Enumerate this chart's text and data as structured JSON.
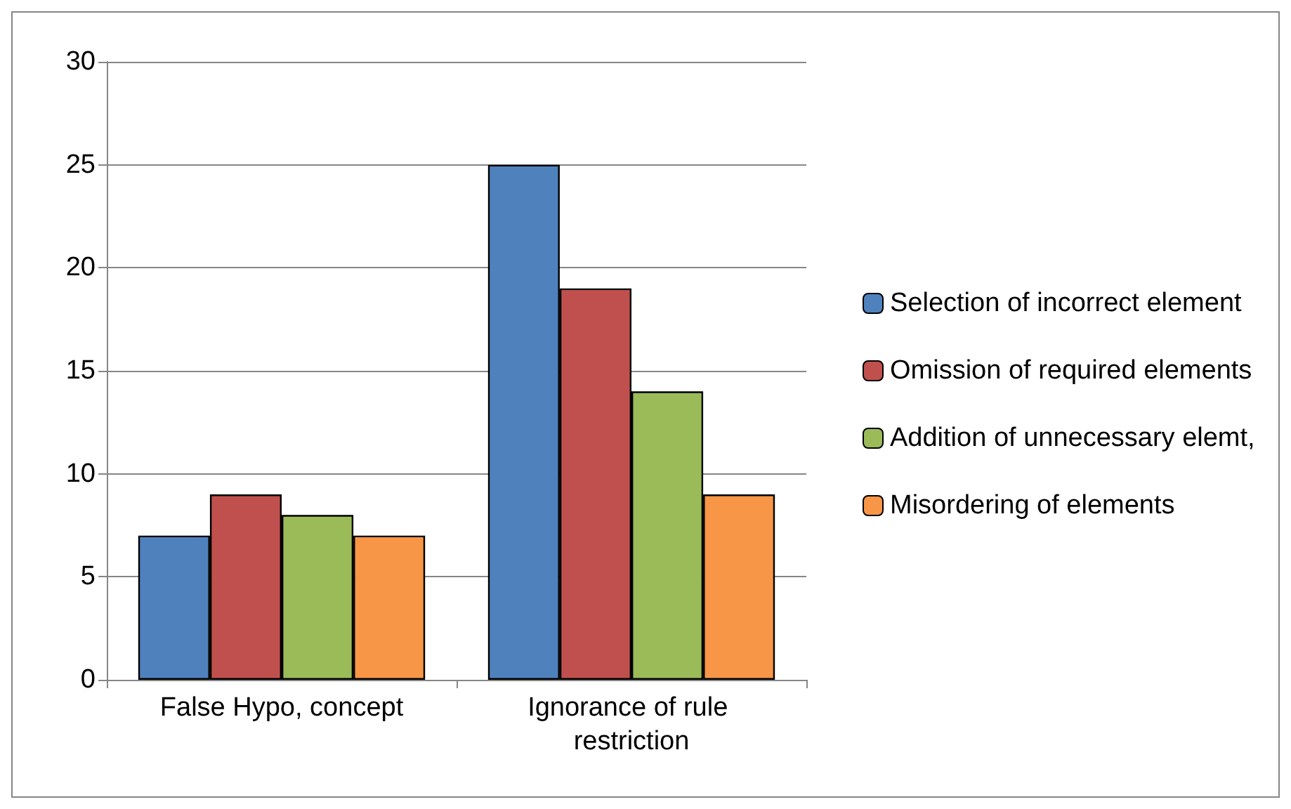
{
  "chart_data": {
    "type": "bar",
    "categories": [
      "False Hypo, concept",
      "Ignorance of rule restriction"
    ],
    "series": [
      {
        "name": "Selection of incorrect element",
        "color": "#4f81bd",
        "values": [
          7,
          25
        ]
      },
      {
        "name": "Omission of required elements",
        "color": "#c0504d",
        "values": [
          9,
          19
        ]
      },
      {
        "name": "Addition of unnecessary elemt,",
        "color": "#9bbb59",
        "values": [
          8,
          14
        ]
      },
      {
        "name": "Misordering of elements",
        "color": "#f79646",
        "values": [
          7,
          9
        ]
      }
    ],
    "ylim": [
      0,
      30
    ],
    "yticks": [
      0,
      5,
      10,
      15,
      20,
      25,
      30
    ],
    "grid": "y",
    "legend": "right"
  }
}
